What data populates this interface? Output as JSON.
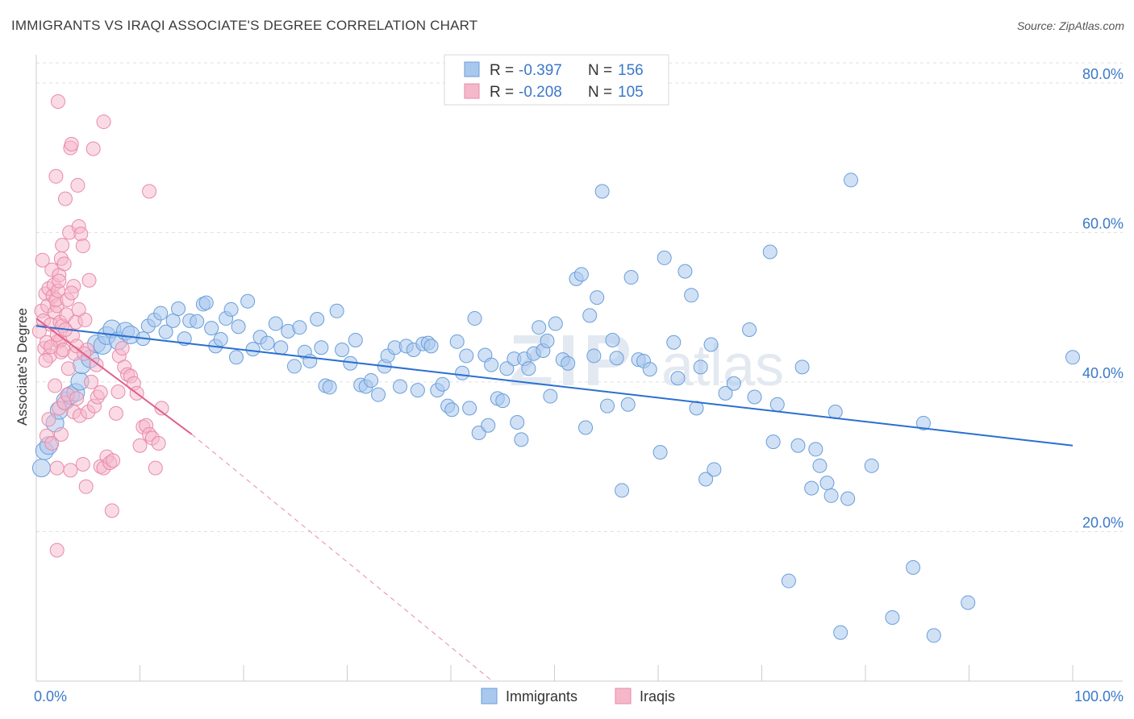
{
  "title": "IMMIGRANTS VS IRAQI ASSOCIATE'S DEGREE CORRELATION CHART",
  "source": "Source: ZipAtlas.com",
  "colors": {
    "blue_fill": "#a9c8ee",
    "blue_stroke": "#6a9ed9",
    "blue_line": "#2a6fd1",
    "pink_fill": "#f5b8cb",
    "pink_stroke": "#e98aa8",
    "pink_line": "#e0608a",
    "axis_text": "#3a78c9",
    "grid": "#e0e0e0"
  },
  "chart_data": {
    "type": "scatter",
    "ylabel": "Associate's Degree",
    "xlim": [
      0,
      100
    ],
    "ylim": [
      0,
      83
    ],
    "x_tick_labels": [
      "0.0%",
      "100.0%"
    ],
    "y_ticks": [
      20,
      40,
      60,
      80
    ],
    "y_tick_labels": [
      "20.0%",
      "40.0%",
      "60.0%",
      "80.0%"
    ],
    "grid": true,
    "legend": {
      "position": "top-center",
      "rows": [
        {
          "r_label": "R =",
          "r_value": "-0.397",
          "n_label": "N =",
          "n_value": "156"
        },
        {
          "r_label": "R =",
          "r_value": "-0.208",
          "n_label": "N =",
          "n_value": "105"
        }
      ]
    },
    "bottom_legend": [
      "Immigrants",
      "Iraqis"
    ],
    "series": [
      {
        "name": "Immigrants",
        "color": "#a9c8ee",
        "trend": {
          "x0": 0,
          "y0": 47.5,
          "x1": 100,
          "y1": 31.5
        },
        "points": [
          [
            0.5,
            28.5
          ],
          [
            0.8,
            30.8
          ],
          [
            1.2,
            31.5
          ],
          [
            1.8,
            34.5
          ],
          [
            2.2,
            36.2
          ],
          [
            2.8,
            37.5
          ],
          [
            3.3,
            38.2
          ],
          [
            3.8,
            38.6
          ],
          [
            4.2,
            40.1
          ],
          [
            4.4,
            42.3
          ],
          [
            5.2,
            43.1
          ],
          [
            5.8,
            45.1
          ],
          [
            6.4,
            44.9
          ],
          [
            6.8,
            46.2
          ],
          [
            7.3,
            47.1
          ],
          [
            7.9,
            45.5
          ],
          [
            8.6,
            46.8
          ],
          [
            9.1,
            46.3
          ],
          [
            10.3,
            45.8
          ],
          [
            10.8,
            47.5
          ],
          [
            11.4,
            48.3
          ],
          [
            12.0,
            49.2
          ],
          [
            12.5,
            46.7
          ],
          [
            13.2,
            48.2
          ],
          [
            13.7,
            49.8
          ],
          [
            14.3,
            45.8
          ],
          [
            14.8,
            48.2
          ],
          [
            15.5,
            48.1
          ],
          [
            16.1,
            50.4
          ],
          [
            16.4,
            50.6
          ],
          [
            16.9,
            47.2
          ],
          [
            17.3,
            44.8
          ],
          [
            17.8,
            45.7
          ],
          [
            18.3,
            48.5
          ],
          [
            18.8,
            49.7
          ],
          [
            19.5,
            47.4
          ],
          [
            19.3,
            43.3
          ],
          [
            20.4,
            50.8
          ],
          [
            20.9,
            44.4
          ],
          [
            21.6,
            46.0
          ],
          [
            22.3,
            45.2
          ],
          [
            23.1,
            47.8
          ],
          [
            23.6,
            44.6
          ],
          [
            24.3,
            46.8
          ],
          [
            24.9,
            42.1
          ],
          [
            25.4,
            47.3
          ],
          [
            25.9,
            44.0
          ],
          [
            26.4,
            42.8
          ],
          [
            27.1,
            48.4
          ],
          [
            27.5,
            44.6
          ],
          [
            27.9,
            39.5
          ],
          [
            28.3,
            39.3
          ],
          [
            29.0,
            49.5
          ],
          [
            29.5,
            44.3
          ],
          [
            30.3,
            42.5
          ],
          [
            30.8,
            45.6
          ],
          [
            31.3,
            39.6
          ],
          [
            31.8,
            39.4
          ],
          [
            32.3,
            40.2
          ],
          [
            33.0,
            38.3
          ],
          [
            33.6,
            42.1
          ],
          [
            33.9,
            43.5
          ],
          [
            34.6,
            44.6
          ],
          [
            35.1,
            39.4
          ],
          [
            35.7,
            44.8
          ],
          [
            36.4,
            44.3
          ],
          [
            36.8,
            38.9
          ],
          [
            37.3,
            45.1
          ],
          [
            37.8,
            45.2
          ],
          [
            38.1,
            44.8
          ],
          [
            38.7,
            38.9
          ],
          [
            39.2,
            39.7
          ],
          [
            39.7,
            36.8
          ],
          [
            40.1,
            36.3
          ],
          [
            40.6,
            45.4
          ],
          [
            41.1,
            41.2
          ],
          [
            41.8,
            36.5
          ],
          [
            41.5,
            43.5
          ],
          [
            42.3,
            48.5
          ],
          [
            42.7,
            33.2
          ],
          [
            43.3,
            43.6
          ],
          [
            43.6,
            34.2
          ],
          [
            43.9,
            42.3
          ],
          [
            44.5,
            37.8
          ],
          [
            45.0,
            37.5
          ],
          [
            45.4,
            41.8
          ],
          [
            46.1,
            43.1
          ],
          [
            46.4,
            34.6
          ],
          [
            46.8,
            32.3
          ],
          [
            47.1,
            43.1
          ],
          [
            47.5,
            41.8
          ],
          [
            48.0,
            43.8
          ],
          [
            48.5,
            47.3
          ],
          [
            48.9,
            44.2
          ],
          [
            49.3,
            45.5
          ],
          [
            49.6,
            38.1
          ],
          [
            50.1,
            47.8
          ],
          [
            50.8,
            43.0
          ],
          [
            51.3,
            42.5
          ],
          [
            52.1,
            53.8
          ],
          [
            52.6,
            54.4
          ],
          [
            53.0,
            33.9
          ],
          [
            53.4,
            48.9
          ],
          [
            53.8,
            43.5
          ],
          [
            54.1,
            51.3
          ],
          [
            54.6,
            65.5
          ],
          [
            55.1,
            36.8
          ],
          [
            55.6,
            45.6
          ],
          [
            56.0,
            43.2
          ],
          [
            56.5,
            25.5
          ],
          [
            57.1,
            37.0
          ],
          [
            57.4,
            54.0
          ],
          [
            58.1,
            43.0
          ],
          [
            58.6,
            42.8
          ],
          [
            59.2,
            41.7
          ],
          [
            60.2,
            30.6
          ],
          [
            60.6,
            56.6
          ],
          [
            61.5,
            45.3
          ],
          [
            61.9,
            40.5
          ],
          [
            62.6,
            54.8
          ],
          [
            63.2,
            51.6
          ],
          [
            63.7,
            36.5
          ],
          [
            64.1,
            42.0
          ],
          [
            64.6,
            27.0
          ],
          [
            65.1,
            45.0
          ],
          [
            65.4,
            28.3
          ],
          [
            66.5,
            38.5
          ],
          [
            67.3,
            39.8
          ],
          [
            68.8,
            47.0
          ],
          [
            69.3,
            38.0
          ],
          [
            70.8,
            57.4
          ],
          [
            71.1,
            32.0
          ],
          [
            71.5,
            37.0
          ],
          [
            72.6,
            13.4
          ],
          [
            73.5,
            31.5
          ],
          [
            73.9,
            42.0
          ],
          [
            74.8,
            25.8
          ],
          [
            75.2,
            31.0
          ],
          [
            75.6,
            28.8
          ],
          [
            76.3,
            26.5
          ],
          [
            76.7,
            24.8
          ],
          [
            77.1,
            36.0
          ],
          [
            77.6,
            6.5
          ],
          [
            78.3,
            24.4
          ],
          [
            78.6,
            67.0
          ],
          [
            80.6,
            28.8
          ],
          [
            82.6,
            8.5
          ],
          [
            84.6,
            15.2
          ],
          [
            85.6,
            34.5
          ],
          [
            86.6,
            6.1
          ],
          [
            89.9,
            10.5
          ],
          [
            100.0,
            43.3
          ]
        ]
      },
      {
        "name": "Iraqis",
        "color": "#f5b8cb",
        "trend": {
          "x0": 0,
          "y0": 48.5,
          "x1": 15,
          "y1": 33.0
        },
        "trend_extension": {
          "x0": 15,
          "y0": 33.0,
          "x1": 44,
          "y1": 0
        },
        "points": [
          [
            0.3,
            46.8
          ],
          [
            0.5,
            49.5
          ],
          [
            0.6,
            56.3
          ],
          [
            0.7,
            48.2
          ],
          [
            0.8,
            44.5
          ],
          [
            0.9,
            51.8
          ],
          [
            1.0,
            45.3
          ],
          [
            1.1,
            50.2
          ],
          [
            1.2,
            52.5
          ],
          [
            1.3,
            43.5
          ],
          [
            1.4,
            47.7
          ],
          [
            1.5,
            55.0
          ],
          [
            1.6,
            51.5
          ],
          [
            1.7,
            53.0
          ],
          [
            1.8,
            49.3
          ],
          [
            1.9,
            67.5
          ],
          [
            2.0,
            50.2
          ],
          [
            2.1,
            45.5
          ],
          [
            2.2,
            54.3
          ],
          [
            2.3,
            45.5
          ],
          [
            2.4,
            56.5
          ],
          [
            2.5,
            58.3
          ],
          [
            1.9,
            51.0
          ],
          [
            2.0,
            46.3
          ],
          [
            2.1,
            52.2
          ],
          [
            2.2,
            53.5
          ],
          [
            2.3,
            48.0
          ],
          [
            2.4,
            44.0
          ],
          [
            2.5,
            47.5
          ],
          [
            2.6,
            44.3
          ],
          [
            2.7,
            55.8
          ],
          [
            2.8,
            64.5
          ],
          [
            2.9,
            49.0
          ],
          [
            3.0,
            51.0
          ],
          [
            3.1,
            41.8
          ],
          [
            3.2,
            60.0
          ],
          [
            3.3,
            71.3
          ],
          [
            3.4,
            71.8
          ],
          [
            3.5,
            46.2
          ],
          [
            3.6,
            52.8
          ],
          [
            3.7,
            43.8
          ],
          [
            3.8,
            48.0
          ],
          [
            3.9,
            44.8
          ],
          [
            4.0,
            66.3
          ],
          [
            4.1,
            60.8
          ],
          [
            4.3,
            59.8
          ],
          [
            4.5,
            58.2
          ],
          [
            4.7,
            48.3
          ],
          [
            4.9,
            44.3
          ],
          [
            5.1,
            53.6
          ],
          [
            1.0,
            32.8
          ],
          [
            1.2,
            35.0
          ],
          [
            1.5,
            31.8
          ],
          [
            1.8,
            39.5
          ],
          [
            2.0,
            28.5
          ],
          [
            2.2,
            36.5
          ],
          [
            2.4,
            33.0
          ],
          [
            2.7,
            37.2
          ],
          [
            3.0,
            38.3
          ],
          [
            3.3,
            28.2
          ],
          [
            3.6,
            36.0
          ],
          [
            3.9,
            37.8
          ],
          [
            4.2,
            35.5
          ],
          [
            4.5,
            29.0
          ],
          [
            4.8,
            26.0
          ],
          [
            5.0,
            36.0
          ],
          [
            5.3,
            40.0
          ],
          [
            5.6,
            36.8
          ],
          [
            5.9,
            38.0
          ],
          [
            6.2,
            28.7
          ],
          [
            6.5,
            28.5
          ],
          [
            6.8,
            30.0
          ],
          [
            7.1,
            29.2
          ],
          [
            7.4,
            29.5
          ],
          [
            7.7,
            35.8
          ],
          [
            8.0,
            43.5
          ],
          [
            8.3,
            44.5
          ],
          [
            8.5,
            42.0
          ],
          [
            8.8,
            41.0
          ],
          [
            9.1,
            40.8
          ],
          [
            9.4,
            39.8
          ],
          [
            9.7,
            38.5
          ],
          [
            10.0,
            31.5
          ],
          [
            10.3,
            34.0
          ],
          [
            10.6,
            34.2
          ],
          [
            10.9,
            33.0
          ],
          [
            11.2,
            32.5
          ],
          [
            11.5,
            28.5
          ],
          [
            11.8,
            31.8
          ],
          [
            12.1,
            36.5
          ],
          [
            7.3,
            22.8
          ],
          [
            2.0,
            17.5
          ],
          [
            2.1,
            77.5
          ],
          [
            6.5,
            74.8
          ],
          [
            5.5,
            71.2
          ],
          [
            10.9,
            65.5
          ],
          [
            7.9,
            38.7
          ],
          [
            6.2,
            38.6
          ],
          [
            5.8,
            42.3
          ],
          [
            4.6,
            43.8
          ],
          [
            4.1,
            49.7
          ],
          [
            3.4,
            51.9
          ],
          [
            2.8,
            47.0
          ],
          [
            1.4,
            44.7
          ],
          [
            0.9,
            42.9
          ]
        ]
      }
    ]
  }
}
